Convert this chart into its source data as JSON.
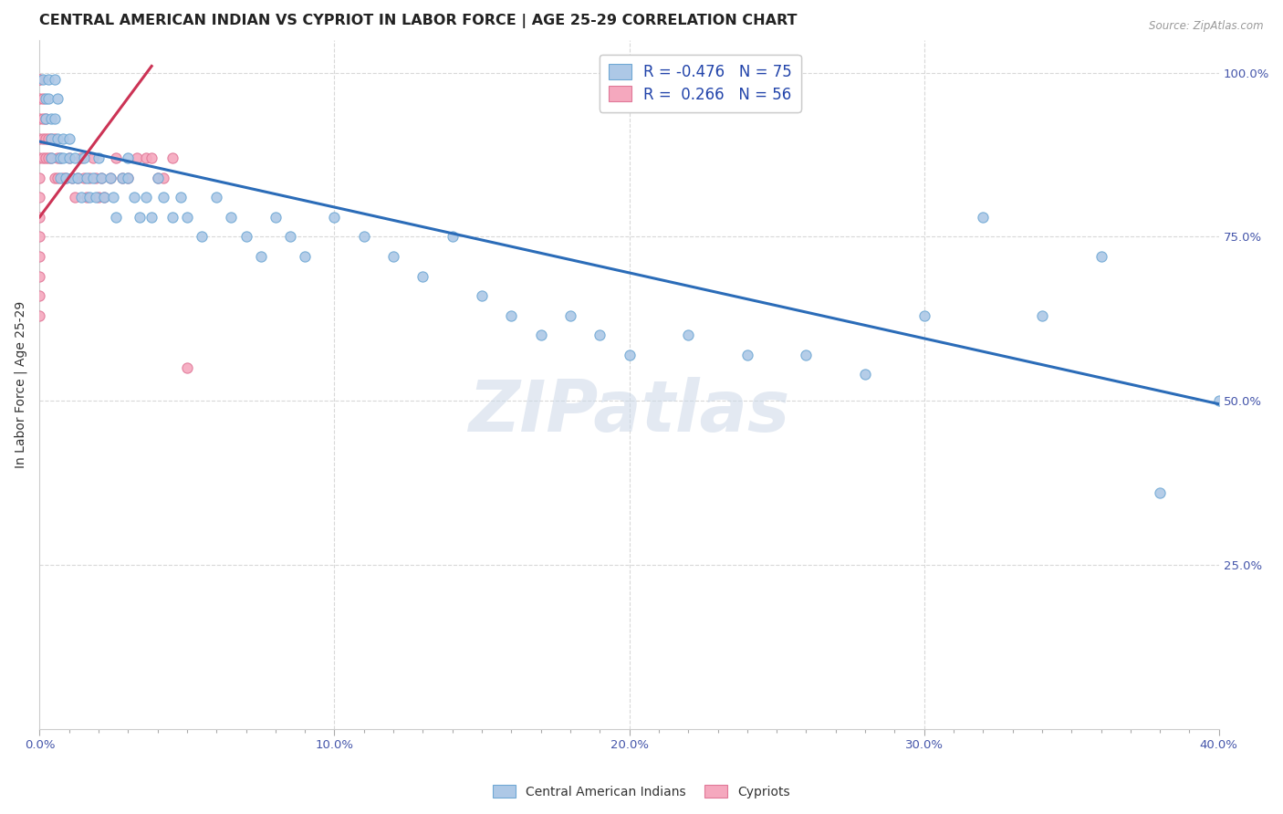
{
  "title": "CENTRAL AMERICAN INDIAN VS CYPRIOT IN LABOR FORCE | AGE 25-29 CORRELATION CHART",
  "source": "Source: ZipAtlas.com",
  "ylabel": "In Labor Force | Age 25-29",
  "xlim": [
    0.0,
    0.4
  ],
  "ylim": [
    0.0,
    1.05
  ],
  "xtick_major": [
    0.0,
    0.2,
    0.4
  ],
  "xtick_major_labels": [
    "0.0%",
    "20.0%",
    "40.0%"
  ],
  "ytick_positions": [
    0.25,
    0.5,
    0.75,
    1.0
  ],
  "ytick_labels": [
    "25.0%",
    "50.0%",
    "75.0%",
    "100.0%"
  ],
  "blue_color": "#adc8e6",
  "pink_color": "#f5a8be",
  "blue_edge": "#6fa8d4",
  "pink_edge": "#e07898",
  "trend_blue": "#2b6cb8",
  "trend_pink": "#cc3355",
  "R_blue": -0.476,
  "N_blue": 75,
  "R_pink": 0.266,
  "N_pink": 56,
  "blue_trend_x0": 0.0,
  "blue_trend_y0": 0.895,
  "blue_trend_x1": 0.4,
  "blue_trend_y1": 0.495,
  "pink_trend_x0": 0.0,
  "pink_trend_y0": 0.78,
  "pink_trend_x1": 0.038,
  "pink_trend_y1": 1.01,
  "background_color": "#ffffff",
  "grid_color": "#d8d8d8",
  "marker_size": 65,
  "title_fontsize": 11.5,
  "axis_fontsize": 10,
  "tick_fontsize": 9.5,
  "legend_fontsize": 12,
  "blue_x": [
    0.001,
    0.002,
    0.002,
    0.003,
    0.003,
    0.004,
    0.004,
    0.004,
    0.005,
    0.005,
    0.006,
    0.006,
    0.007,
    0.007,
    0.008,
    0.008,
    0.009,
    0.01,
    0.01,
    0.011,
    0.012,
    0.013,
    0.014,
    0.015,
    0.016,
    0.017,
    0.018,
    0.019,
    0.02,
    0.021,
    0.022,
    0.024,
    0.025,
    0.026,
    0.028,
    0.03,
    0.03,
    0.032,
    0.034,
    0.036,
    0.038,
    0.04,
    0.042,
    0.045,
    0.048,
    0.05,
    0.055,
    0.06,
    0.065,
    0.07,
    0.075,
    0.08,
    0.085,
    0.09,
    0.1,
    0.11,
    0.12,
    0.13,
    0.14,
    0.15,
    0.16,
    0.17,
    0.18,
    0.19,
    0.2,
    0.22,
    0.24,
    0.26,
    0.28,
    0.3,
    0.32,
    0.34,
    0.36,
    0.38,
    0.4
  ],
  "blue_y": [
    0.99,
    0.96,
    0.93,
    0.99,
    0.96,
    0.93,
    0.9,
    0.87,
    0.99,
    0.93,
    0.96,
    0.9,
    0.87,
    0.84,
    0.9,
    0.87,
    0.84,
    0.9,
    0.87,
    0.84,
    0.87,
    0.84,
    0.81,
    0.87,
    0.84,
    0.81,
    0.84,
    0.81,
    0.87,
    0.84,
    0.81,
    0.84,
    0.81,
    0.78,
    0.84,
    0.87,
    0.84,
    0.81,
    0.78,
    0.81,
    0.78,
    0.84,
    0.81,
    0.78,
    0.81,
    0.78,
    0.75,
    0.81,
    0.78,
    0.75,
    0.72,
    0.78,
    0.75,
    0.72,
    0.78,
    0.75,
    0.72,
    0.69,
    0.75,
    0.66,
    0.63,
    0.6,
    0.63,
    0.6,
    0.57,
    0.6,
    0.57,
    0.57,
    0.54,
    0.63,
    0.78,
    0.63,
    0.72,
    0.36,
    0.5
  ],
  "pink_x": [
    0.0,
    0.0,
    0.0,
    0.0,
    0.0,
    0.0,
    0.0,
    0.0,
    0.0,
    0.0,
    0.0,
    0.0,
    0.0,
    0.0,
    0.001,
    0.001,
    0.001,
    0.001,
    0.002,
    0.002,
    0.002,
    0.003,
    0.003,
    0.004,
    0.004,
    0.005,
    0.005,
    0.006,
    0.006,
    0.007,
    0.008,
    0.009,
    0.01,
    0.011,
    0.012,
    0.013,
    0.014,
    0.015,
    0.016,
    0.017,
    0.018,
    0.019,
    0.02,
    0.021,
    0.022,
    0.024,
    0.026,
    0.028,
    0.03,
    0.033,
    0.036,
    0.038,
    0.04,
    0.042,
    0.045,
    0.05
  ],
  "pink_y": [
    0.99,
    0.99,
    0.96,
    0.93,
    0.9,
    0.87,
    0.84,
    0.81,
    0.78,
    0.75,
    0.72,
    0.69,
    0.66,
    0.63,
    0.96,
    0.93,
    0.9,
    0.87,
    0.93,
    0.9,
    0.87,
    0.9,
    0.87,
    0.9,
    0.87,
    0.9,
    0.84,
    0.87,
    0.84,
    0.87,
    0.84,
    0.84,
    0.87,
    0.84,
    0.81,
    0.84,
    0.87,
    0.84,
    0.81,
    0.84,
    0.87,
    0.84,
    0.81,
    0.84,
    0.81,
    0.84,
    0.87,
    0.84,
    0.84,
    0.87,
    0.87,
    0.87,
    0.84,
    0.84,
    0.87,
    0.55
  ]
}
